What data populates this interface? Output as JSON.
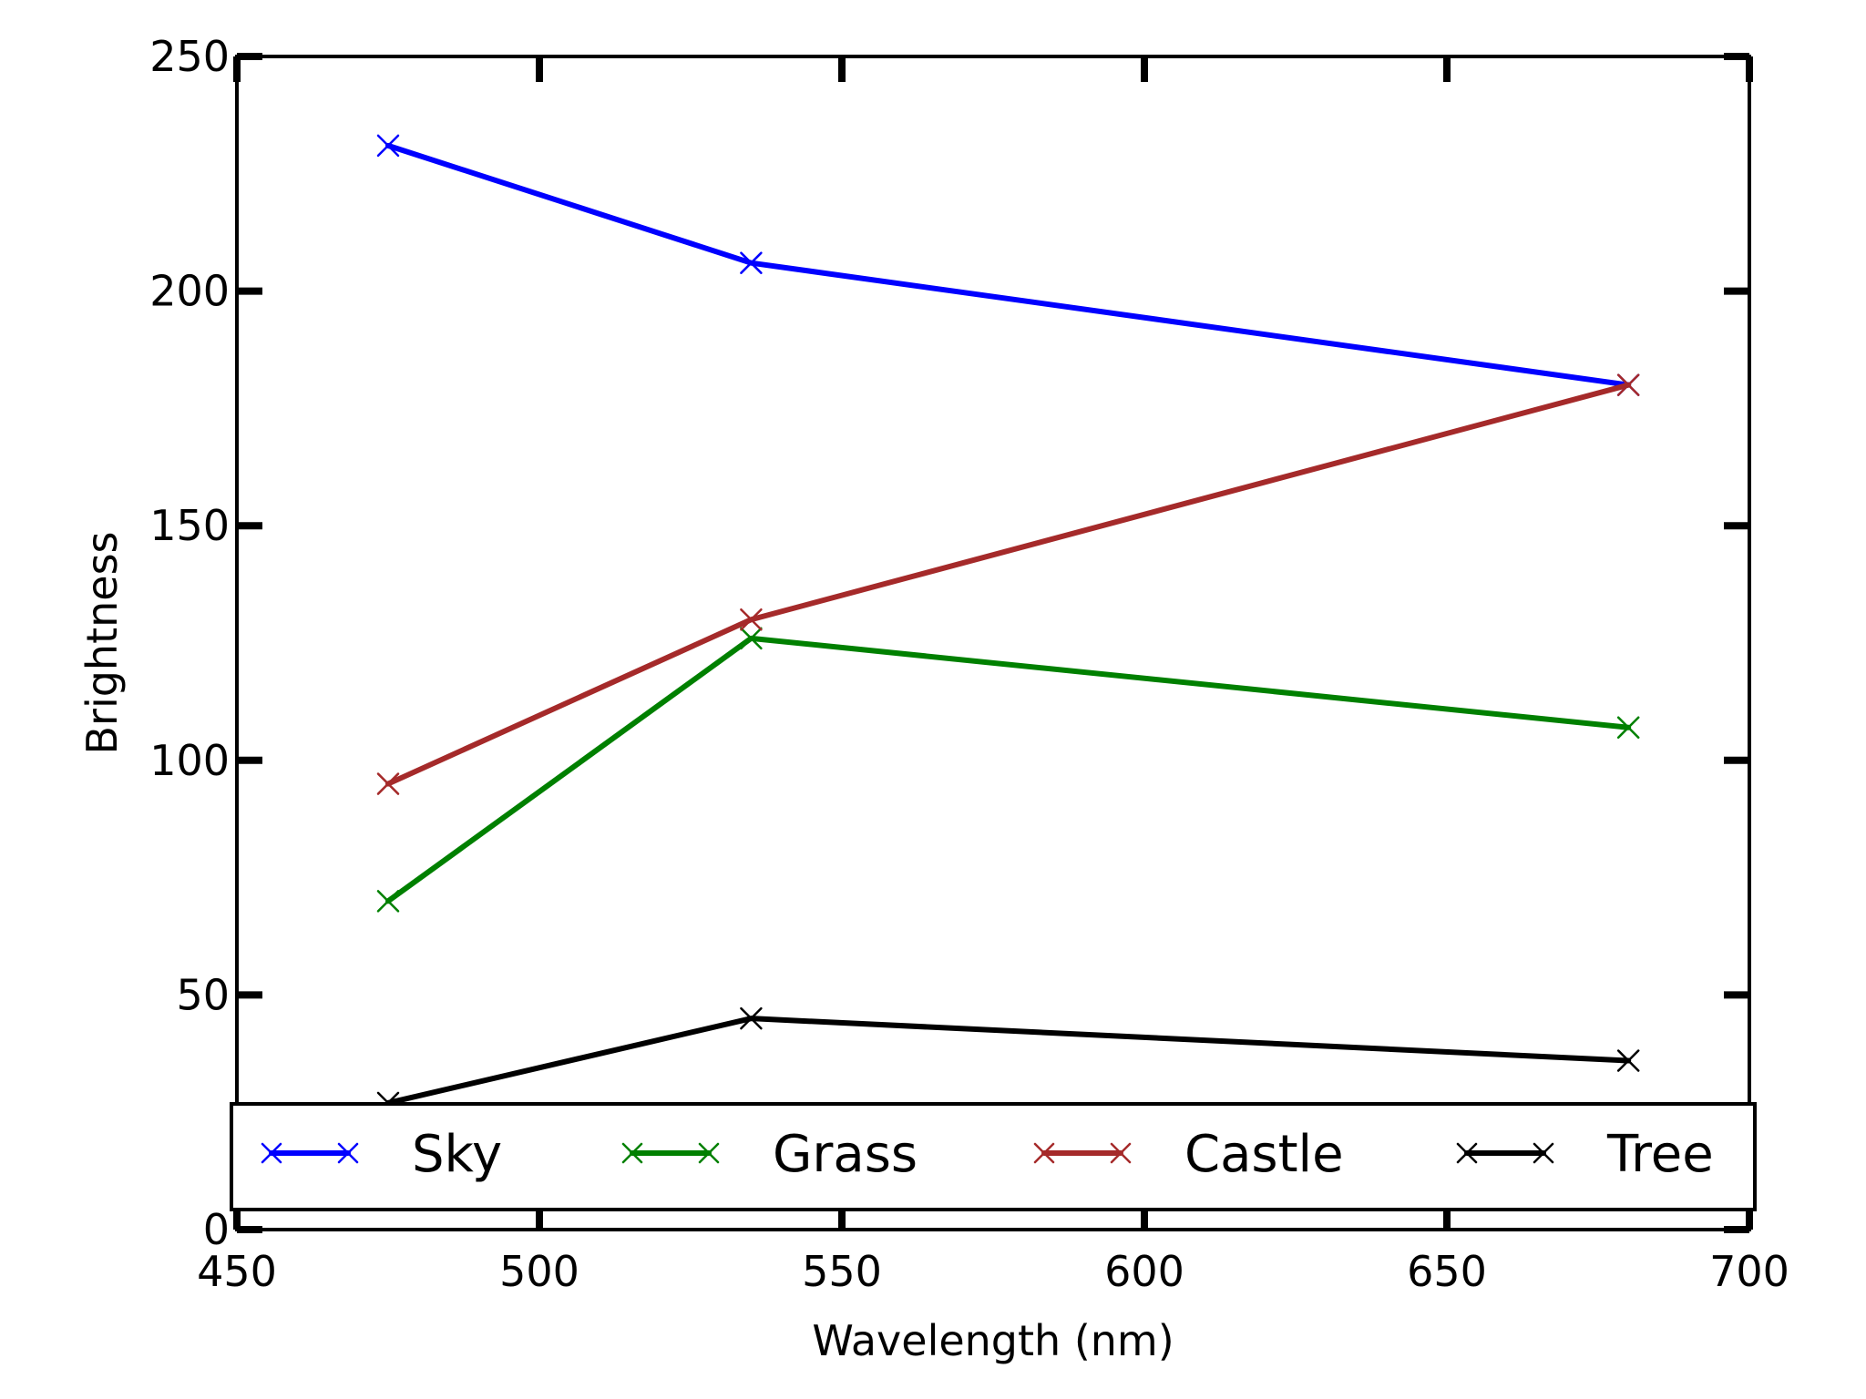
{
  "chart_data": {
    "type": "line",
    "title": "",
    "xlabel": "Wavelength (nm)",
    "ylabel": "Brightness",
    "xlim": [
      450,
      700
    ],
    "ylim": [
      0,
      250
    ],
    "xticks": [
      450,
      500,
      550,
      600,
      650,
      700
    ],
    "yticks": [
      0,
      50,
      100,
      150,
      200,
      250
    ],
    "grid": false,
    "legend_position": "bottom",
    "x": [
      475,
      535,
      680
    ],
    "series": [
      {
        "name": "Sky",
        "values": [
          231,
          206,
          180
        ],
        "color": "#0000ff",
        "marker": "x"
      },
      {
        "name": "Grass",
        "values": [
          70,
          126,
          107
        ],
        "color": "#008000",
        "marker": "x"
      },
      {
        "name": "Castle",
        "values": [
          95,
          130,
          180
        ],
        "color": "#a52a2a",
        "marker": "x"
      },
      {
        "name": "Tree",
        "values": [
          27,
          45,
          36
        ],
        "color": "#000000",
        "marker": "x"
      }
    ]
  }
}
